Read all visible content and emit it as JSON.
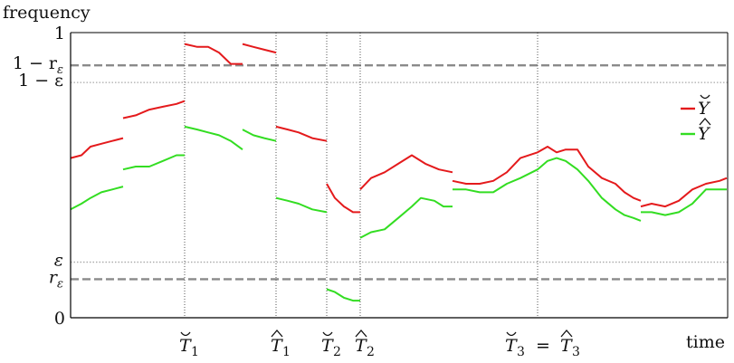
{
  "chart_data": {
    "type": "line",
    "title": "",
    "xlabel": "time",
    "ylabel": "frequency",
    "ylim": [
      0,
      1
    ],
    "y_ticks": [
      {
        "value": 0,
        "label": "0"
      },
      {
        "value": 1,
        "label": "1"
      }
    ],
    "reference_lines": [
      {
        "value": 0.135,
        "label_main": "r",
        "label_sub": "ε",
        "style": "dashed"
      },
      {
        "value": 0.195,
        "label_main": "ε",
        "label_sub": "",
        "style": "dotted"
      },
      {
        "value": 0.825,
        "label_main": "1 − ε",
        "label_sub": "",
        "style": "dotted"
      },
      {
        "value": 0.885,
        "label_main": "1 − r",
        "label_sub": "ε",
        "style": "dashed"
      }
    ],
    "events": [
      {
        "x": 204,
        "label": "T",
        "sub": "1",
        "accent": "breve"
      },
      {
        "x": 305,
        "label": "T",
        "sub": "1",
        "accent": "hat"
      },
      {
        "x": 361,
        "label": "T",
        "sub": "2",
        "accent": "breve"
      },
      {
        "x": 398,
        "label": "T",
        "sub": "2",
        "accent": "hat"
      },
      {
        "x": 594,
        "label": "T",
        "sub": "3",
        "accent": "breve",
        "equals": {
          "label": "T",
          "sub": "3",
          "accent": "hat"
        }
      }
    ],
    "series": [
      {
        "name": "Y",
        "accent": "breve",
        "color": "#e41a1c",
        "segments": [
          [
            [
              78,
              0.56
            ],
            [
              90,
              0.57
            ],
            [
              100,
              0.6
            ],
            [
              112,
              0.61
            ],
            [
              124,
              0.62
            ],
            [
              136,
              0.63
            ]
          ],
          [
            [
              136,
              0.7
            ],
            [
              150,
              0.71
            ],
            [
              165,
              0.73
            ],
            [
              180,
              0.74
            ],
            [
              195,
              0.75
            ],
            [
              204,
              0.76
            ]
          ],
          [
            [
              204,
              0.96
            ],
            [
              218,
              0.95
            ],
            [
              230,
              0.95
            ],
            [
              242,
              0.93
            ],
            [
              255,
              0.89
            ],
            [
              268,
              0.89
            ]
          ],
          [
            [
              268,
              0.96
            ],
            [
              280,
              0.95
            ],
            [
              292,
              0.94
            ],
            [
              305,
              0.93
            ]
          ],
          [
            [
              305,
              0.67
            ],
            [
              318,
              0.66
            ],
            [
              330,
              0.65
            ],
            [
              345,
              0.63
            ],
            [
              361,
              0.62
            ]
          ],
          [
            [
              361,
              0.47
            ],
            [
              370,
              0.42
            ],
            [
              380,
              0.39
            ],
            [
              390,
              0.37
            ],
            [
              398,
              0.37
            ]
          ],
          [
            [
              398,
              0.45
            ],
            [
              410,
              0.49
            ],
            [
              425,
              0.51
            ],
            [
              440,
              0.54
            ],
            [
              455,
              0.57
            ],
            [
              470,
              0.54
            ],
            [
              485,
              0.52
            ],
            [
              500,
              0.51
            ]
          ],
          [
            [
              500,
              0.48
            ],
            [
              515,
              0.47
            ],
            [
              530,
              0.47
            ],
            [
              545,
              0.48
            ],
            [
              560,
              0.51
            ],
            [
              575,
              0.56
            ],
            [
              594,
              0.58
            ],
            [
              605,
              0.6
            ],
            [
              615,
              0.58
            ],
            [
              625,
              0.59
            ],
            [
              638,
              0.59
            ],
            [
              650,
              0.53
            ],
            [
              665,
              0.49
            ],
            [
              680,
              0.47
            ],
            [
              690,
              0.44
            ],
            [
              700,
              0.42
            ],
            [
              708,
              0.41
            ]
          ],
          [
            [
              708,
              0.39
            ],
            [
              720,
              0.4
            ],
            [
              735,
              0.39
            ],
            [
              750,
              0.41
            ],
            [
              765,
              0.45
            ],
            [
              780,
              0.47
            ],
            [
              795,
              0.48
            ],
            [
              803,
              0.49
            ]
          ]
        ]
      },
      {
        "name": "Y",
        "accent": "hat",
        "color": "#33dd22",
        "segments": [
          [
            [
              78,
              0.38
            ],
            [
              90,
              0.4
            ],
            [
              100,
              0.42
            ],
            [
              112,
              0.44
            ],
            [
              124,
              0.45
            ],
            [
              136,
              0.46
            ]
          ],
          [
            [
              136,
              0.52
            ],
            [
              150,
              0.53
            ],
            [
              165,
              0.53
            ],
            [
              180,
              0.55
            ],
            [
              195,
              0.57
            ],
            [
              204,
              0.57
            ]
          ],
          [
            [
              204,
              0.67
            ],
            [
              218,
              0.66
            ],
            [
              230,
              0.65
            ],
            [
              242,
              0.64
            ],
            [
              255,
              0.62
            ],
            [
              268,
              0.59
            ]
          ],
          [
            [
              268,
              0.66
            ],
            [
              280,
              0.64
            ],
            [
              292,
              0.63
            ],
            [
              305,
              0.62
            ]
          ],
          [
            [
              305,
              0.42
            ],
            [
              318,
              0.41
            ],
            [
              330,
              0.4
            ],
            [
              345,
              0.38
            ],
            [
              361,
              0.37
            ]
          ],
          [
            [
              361,
              0.1
            ],
            [
              370,
              0.09
            ],
            [
              380,
              0.07
            ],
            [
              390,
              0.06
            ],
            [
              398,
              0.06
            ]
          ],
          [
            [
              398,
              0.28
            ],
            [
              410,
              0.3
            ],
            [
              425,
              0.31
            ],
            [
              440,
              0.35
            ],
            [
              455,
              0.39
            ],
            [
              465,
              0.42
            ],
            [
              480,
              0.41
            ],
            [
              490,
              0.39
            ],
            [
              500,
              0.39
            ]
          ],
          [
            [
              500,
              0.45
            ],
            [
              515,
              0.45
            ],
            [
              530,
              0.44
            ],
            [
              545,
              0.44
            ],
            [
              560,
              0.47
            ],
            [
              575,
              0.49
            ],
            [
              594,
              0.52
            ],
            [
              605,
              0.55
            ],
            [
              615,
              0.56
            ],
            [
              625,
              0.55
            ],
            [
              638,
              0.52
            ],
            [
              650,
              0.48
            ],
            [
              665,
              0.42
            ],
            [
              680,
              0.38
            ],
            [
              690,
              0.36
            ],
            [
              700,
              0.35
            ],
            [
              708,
              0.34
            ]
          ],
          [
            [
              708,
              0.37
            ],
            [
              720,
              0.37
            ],
            [
              735,
              0.36
            ],
            [
              750,
              0.37
            ],
            [
              765,
              0.4
            ],
            [
              780,
              0.45
            ],
            [
              795,
              0.45
            ],
            [
              803,
              0.45
            ]
          ]
        ]
      }
    ],
    "legend_position": "right",
    "grid": false
  }
}
